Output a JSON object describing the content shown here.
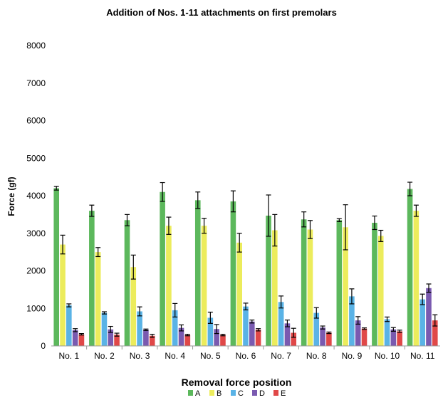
{
  "chart_data": {
    "type": "bar",
    "title": "Addition of Nos. 1-11 attachments on first premolars",
    "xlabel": "Removal force position",
    "ylabel": "Force (gf)",
    "ylim": [
      0,
      8000
    ],
    "yticks": [
      0,
      1000,
      2000,
      3000,
      4000,
      5000,
      6000,
      7000,
      8000
    ],
    "grid": false,
    "legend_position": "bottom",
    "categories": [
      "No. 1",
      "No. 2",
      "No. 3",
      "No. 4",
      "No. 5",
      "No. 6",
      "No. 7",
      "No. 8",
      "No. 9",
      "No. 10",
      "No. 11"
    ],
    "series": [
      {
        "name": "A",
        "color": "#5cb85c",
        "values": [
          4200,
          3600,
          3350,
          4100,
          3880,
          3850,
          3470,
          3370,
          3350,
          3280,
          4180
        ],
        "errors": [
          50,
          150,
          150,
          250,
          220,
          280,
          550,
          200,
          40,
          180,
          180
        ]
      },
      {
        "name": "B",
        "color": "#ecec5c",
        "values": [
          2700,
          2500,
          2100,
          3200,
          3200,
          2750,
          3080,
          3100,
          3160,
          2930,
          3600
        ],
        "errors": [
          250,
          120,
          320,
          230,
          200,
          250,
          420,
          240,
          600,
          150,
          150
        ]
      },
      {
        "name": "C",
        "color": "#5ab3e6",
        "values": [
          1080,
          880,
          920,
          950,
          750,
          1050,
          1170,
          880,
          1320,
          710,
          1240
        ],
        "errors": [
          40,
          30,
          120,
          180,
          150,
          90,
          160,
          140,
          200,
          60,
          140
        ]
      },
      {
        "name": "D",
        "color": "#7a5ab0",
        "values": [
          420,
          440,
          430,
          480,
          450,
          650,
          600,
          490,
          680,
          440,
          1540
        ],
        "errors": [
          40,
          80,
          20,
          80,
          120,
          40,
          90,
          40,
          100,
          50,
          110
        ]
      },
      {
        "name": "E",
        "color": "#e04848",
        "values": [
          310,
          300,
          270,
          290,
          290,
          430,
          350,
          350,
          460,
          390,
          680
        ],
        "errors": [
          20,
          40,
          40,
          20,
          20,
          30,
          120,
          20,
          20,
          30,
          150
        ]
      }
    ]
  }
}
